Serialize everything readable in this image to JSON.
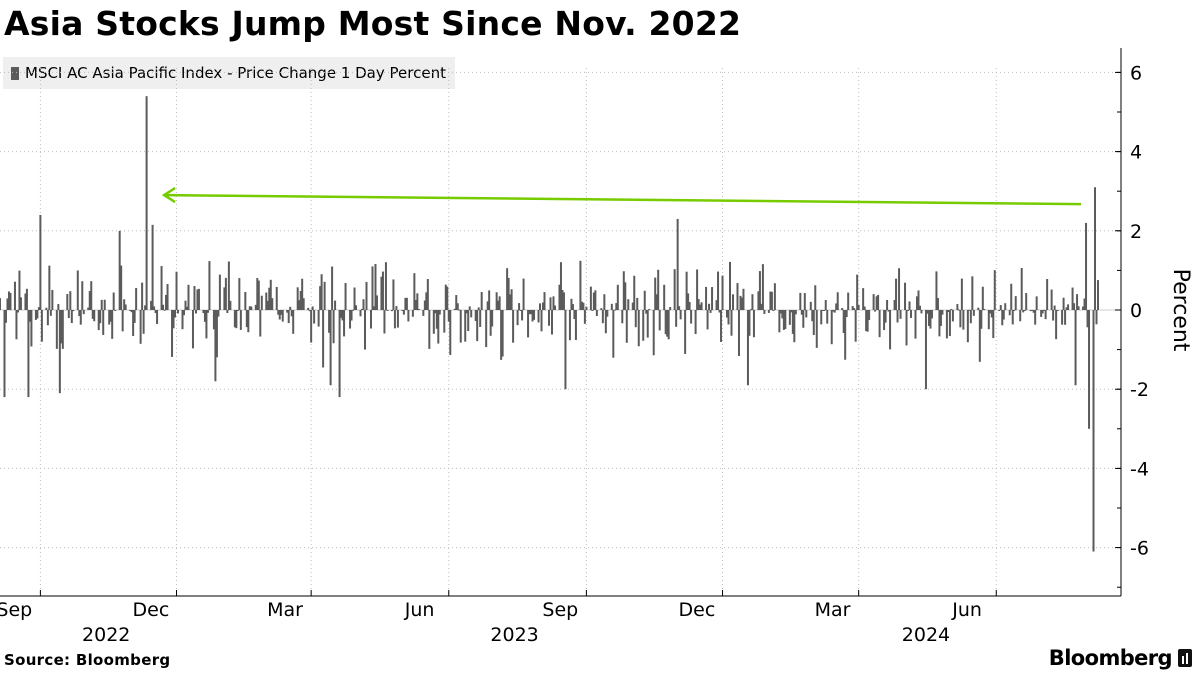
{
  "title": "Asia Stocks Jump Most Since Nov. 2022",
  "legend_label": "MSCI AC Asia Pacific Index - Price Change 1 Day Percent",
  "source": "Source: Bloomberg",
  "brand": "Bloomberg",
  "colors": {
    "bar": "#5b5b5b",
    "annotation_arrow": "#77cc00",
    "axis": "#000000",
    "gridline": "#bdbdbd"
  },
  "chart_data": {
    "type": "bar",
    "title": "Asia Stocks Jump Most Since Nov. 2022",
    "series": [
      {
        "name": "MSCI AC Asia Pacific Index - Price Change 1 Day Percent"
      }
    ],
    "ylabel": "Percent",
    "ylim": [
      -7,
      6.5
    ],
    "yticks": [
      6,
      4,
      2,
      0,
      -2,
      -4,
      -6
    ],
    "xlim": [
      "2022-08-05",
      "2024-08-08"
    ],
    "month_ticks": [
      {
        "date": "2022-09-01",
        "label": "Sep"
      },
      {
        "date": "2022-12-01",
        "label": "Dec"
      },
      {
        "date": "2023-03-01",
        "label": "Mar"
      },
      {
        "date": "2023-06-01",
        "label": "Jun"
      },
      {
        "date": "2023-09-01",
        "label": "Sep"
      },
      {
        "date": "2023-12-01",
        "label": "Dec"
      },
      {
        "date": "2024-03-01",
        "label": "Mar"
      },
      {
        "date": "2024-06-01",
        "label": "Jun"
      }
    ],
    "year_labels": [
      {
        "date": "2022-10-15",
        "label": "2022"
      },
      {
        "date": "2023-07-15",
        "label": "2023"
      },
      {
        "date": "2024-04-15",
        "label": "2024"
      }
    ],
    "highlight_values": [
      {
        "date": "2022-08-05",
        "value": 0.3
      },
      {
        "date": "2022-08-08",
        "value": -2.2
      },
      {
        "date": "2022-08-24",
        "value": -2.2
      },
      {
        "date": "2022-09-01",
        "value": 2.4
      },
      {
        "date": "2022-09-14",
        "value": -2.1
      },
      {
        "date": "2022-10-24",
        "value": 2.0
      },
      {
        "date": "2022-11-11",
        "value": 5.4
      },
      {
        "date": "2022-11-15",
        "value": 2.15
      },
      {
        "date": "2022-12-27",
        "value": -1.8
      },
      {
        "date": "2023-03-14",
        "value": -1.9
      },
      {
        "date": "2023-03-20",
        "value": -2.2
      },
      {
        "date": "2023-08-18",
        "value": -2.0
      },
      {
        "date": "2023-11-01",
        "value": 2.3
      },
      {
        "date": "2023-12-18",
        "value": -1.9
      },
      {
        "date": "2024-04-15",
        "value": -2.0
      },
      {
        "date": "2024-07-24",
        "value": -1.9
      },
      {
        "date": "2024-07-31",
        "value": 2.2
      },
      {
        "date": "2024-08-02",
        "value": -3.0
      },
      {
        "date": "2024-08-05",
        "value": -6.1
      },
      {
        "date": "2024-08-06",
        "value": 3.1
      }
    ],
    "typical_daily_range": [
      -1.5,
      1.5
    ],
    "annotation": {
      "type": "arrow",
      "description": "Level of latest jump compared with Nov. 2022",
      "from_date": "2024-08-06",
      "to_date": "2022-11-14",
      "value": 2.7
    }
  }
}
